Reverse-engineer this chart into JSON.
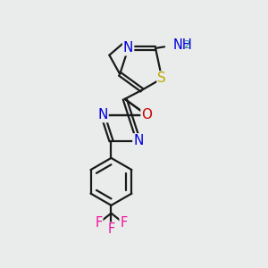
{
  "bg_color": "#eaecec",
  "bond_color": "#1a1a1a",
  "bond_width": 1.6,
  "atom_colors": {
    "N": "#0000dd",
    "S": "#bbaa00",
    "O": "#cc0000",
    "F": "#ee1199",
    "H": "#338899",
    "C": "#1a1a1a"
  },
  "scale": 1.0
}
